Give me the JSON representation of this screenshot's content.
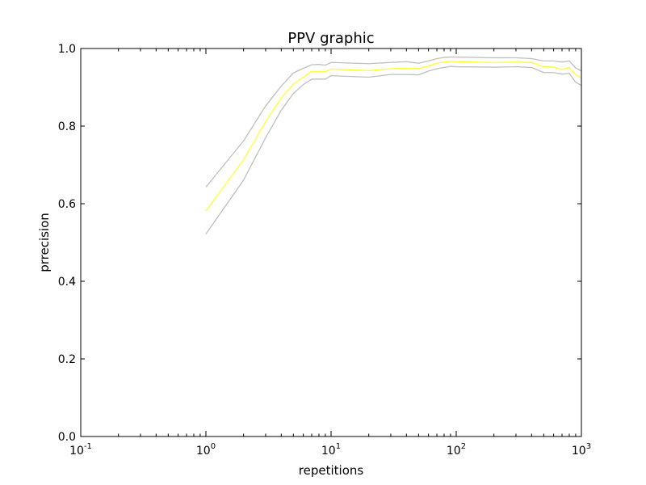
{
  "chart_data": {
    "type": "line",
    "title": "PPV graphic",
    "xlabel": "repetitions",
    "ylabel": "prrecision",
    "xscale": "log",
    "xlim": [
      0.1,
      1000
    ],
    "ylim": [
      0.0,
      1.0
    ],
    "grid": false,
    "legend": "none",
    "x_ticks": [
      {
        "base": "10",
        "exp": "-1",
        "value": 0.1
      },
      {
        "base": "10",
        "exp": "0",
        "value": 1
      },
      {
        "base": "10",
        "exp": "1",
        "value": 10
      },
      {
        "base": "10",
        "exp": "2",
        "value": 100
      },
      {
        "base": "10",
        "exp": "3",
        "value": 1000
      }
    ],
    "y_ticks": [
      {
        "label": "0.0",
        "value": 0.0
      },
      {
        "label": "0.2",
        "value": 0.2
      },
      {
        "label": "0.4",
        "value": 0.4
      },
      {
        "label": "0.6",
        "value": 0.6
      },
      {
        "label": "0.8",
        "value": 0.8
      },
      {
        "label": "1.0",
        "value": 1.0
      }
    ],
    "x": [
      1,
      2,
      3,
      4,
      5,
      6,
      7,
      8,
      9,
      10,
      20,
      30,
      40,
      50,
      60,
      70,
      80,
      90,
      100,
      200,
      300,
      400,
      500,
      600,
      700,
      800,
      900,
      1000
    ],
    "series": [
      {
        "color": "#bfbfbf",
        "values": [
          0.643,
          0.762,
          0.852,
          0.903,
          0.937,
          0.949,
          0.958,
          0.959,
          0.957,
          0.964,
          0.961,
          0.964,
          0.966,
          0.962,
          0.968,
          0.974,
          0.977,
          0.978,
          0.978,
          0.976,
          0.976,
          0.974,
          0.968,
          0.968,
          0.965,
          0.968,
          0.95,
          0.942
        ]
      },
      {
        "color": "#ffff33",
        "values": [
          0.581,
          0.713,
          0.811,
          0.872,
          0.908,
          0.926,
          0.941,
          0.94,
          0.94,
          0.947,
          0.943,
          0.948,
          0.949,
          0.948,
          0.955,
          0.962,
          0.965,
          0.967,
          0.966,
          0.964,
          0.965,
          0.964,
          0.953,
          0.952,
          0.946,
          0.951,
          0.933,
          0.924
        ]
      },
      {
        "color": "#bfbfbf",
        "values": [
          0.522,
          0.661,
          0.77,
          0.841,
          0.884,
          0.907,
          0.921,
          0.921,
          0.921,
          0.93,
          0.926,
          0.933,
          0.933,
          0.932,
          0.942,
          0.948,
          0.951,
          0.954,
          0.953,
          0.952,
          0.953,
          0.951,
          0.938,
          0.938,
          0.934,
          0.936,
          0.913,
          0.905
        ]
      }
    ]
  }
}
